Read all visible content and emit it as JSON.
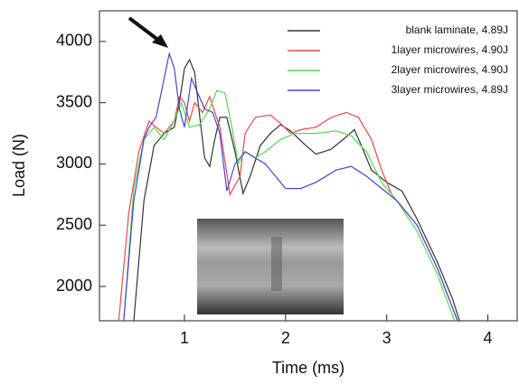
{
  "chart_data": {
    "type": "line",
    "xlabel": "Time (ms)",
    "ylabel": "Load (N)",
    "xlim": [
      0.16,
      4.29
    ],
    "ylim": [
      1720,
      4250
    ],
    "xticks": [
      1,
      2,
      3,
      4
    ],
    "yticks": [
      2000,
      2500,
      3000,
      3500,
      4000
    ],
    "legend": "upper right",
    "series": [
      {
        "name": "blank laminate, 4.89J",
        "color": "#333333",
        "x": [
          0.5,
          0.6,
          0.7,
          0.8,
          0.9,
          0.95,
          1.0,
          1.05,
          1.1,
          1.15,
          1.2,
          1.25,
          1.3,
          1.35,
          1.42,
          1.5,
          1.58,
          1.65,
          1.75,
          1.85,
          1.95,
          2.05,
          2.2,
          2.3,
          2.45,
          2.6,
          2.68,
          2.75,
          2.85,
          3.0,
          3.15,
          3.3,
          3.5,
          3.65,
          3.72
        ],
        "values": [
          1720,
          2700,
          3150,
          3250,
          3300,
          3500,
          3780,
          3850,
          3750,
          3400,
          3050,
          2980,
          3200,
          3380,
          3380,
          3100,
          2760,
          2900,
          3150,
          3250,
          3320,
          3270,
          3150,
          3080,
          3120,
          3220,
          3280,
          3150,
          2950,
          2850,
          2780,
          2550,
          2200,
          1900,
          1720
        ]
      },
      {
        "name": "1layer microwires, 4.90J",
        "color": "#f04848",
        "x": [
          0.35,
          0.45,
          0.55,
          0.65,
          0.72,
          0.8,
          0.9,
          0.95,
          1.0,
          1.05,
          1.1,
          1.18,
          1.25,
          1.35,
          1.45,
          1.55,
          1.6,
          1.7,
          1.85,
          1.95,
          2.05,
          2.15,
          2.3,
          2.45,
          2.6,
          2.72,
          2.85,
          2.95,
          3.05,
          3.3,
          3.5,
          3.7
        ],
        "values": [
          1720,
          2600,
          3100,
          3350,
          3300,
          3250,
          3350,
          3550,
          3500,
          3350,
          3500,
          3420,
          3550,
          3300,
          2750,
          2900,
          3250,
          3380,
          3400,
          3330,
          3250,
          3280,
          3300,
          3380,
          3420,
          3380,
          3200,
          2950,
          2750,
          2500,
          2150,
          1720
        ]
      },
      {
        "name": "2layer microwires, 4.90J",
        "color": "#50dc50",
        "x": [
          0.4,
          0.5,
          0.6,
          0.7,
          0.8,
          0.9,
          0.97,
          1.05,
          1.15,
          1.25,
          1.32,
          1.4,
          1.47,
          1.53,
          1.6,
          1.7,
          1.8,
          1.95,
          2.1,
          2.3,
          2.5,
          2.65,
          2.8,
          2.95,
          3.1,
          3.3,
          3.5,
          3.67
        ],
        "values": [
          1720,
          2800,
          3200,
          3300,
          3200,
          3350,
          3500,
          3300,
          3320,
          3450,
          3600,
          3580,
          3300,
          3000,
          3100,
          3050,
          3100,
          3200,
          3250,
          3250,
          3270,
          3230,
          3100,
          2850,
          2700,
          2450,
          2100,
          1720
        ]
      },
      {
        "name": "3layer microwires, 4.89J",
        "color": "#4646d2",
        "x": [
          0.4,
          0.5,
          0.6,
          0.65,
          0.72,
          0.8,
          0.85,
          0.9,
          0.95,
          1.0,
          1.07,
          1.12,
          1.2,
          1.28,
          1.35,
          1.42,
          1.5,
          1.6,
          1.7,
          1.8,
          1.9,
          2.0,
          2.15,
          2.3,
          2.5,
          2.65,
          2.8,
          2.95,
          3.1,
          3.3,
          3.5,
          3.7
        ],
        "values": [
          1720,
          2700,
          3200,
          3300,
          3380,
          3700,
          3900,
          3780,
          3450,
          3300,
          3700,
          3600,
          3450,
          3420,
          3250,
          2780,
          3000,
          3100,
          3050,
          3000,
          2900,
          2800,
          2800,
          2850,
          2950,
          2980,
          2900,
          2800,
          2700,
          2500,
          2150,
          1720
        ]
      }
    ]
  }
}
